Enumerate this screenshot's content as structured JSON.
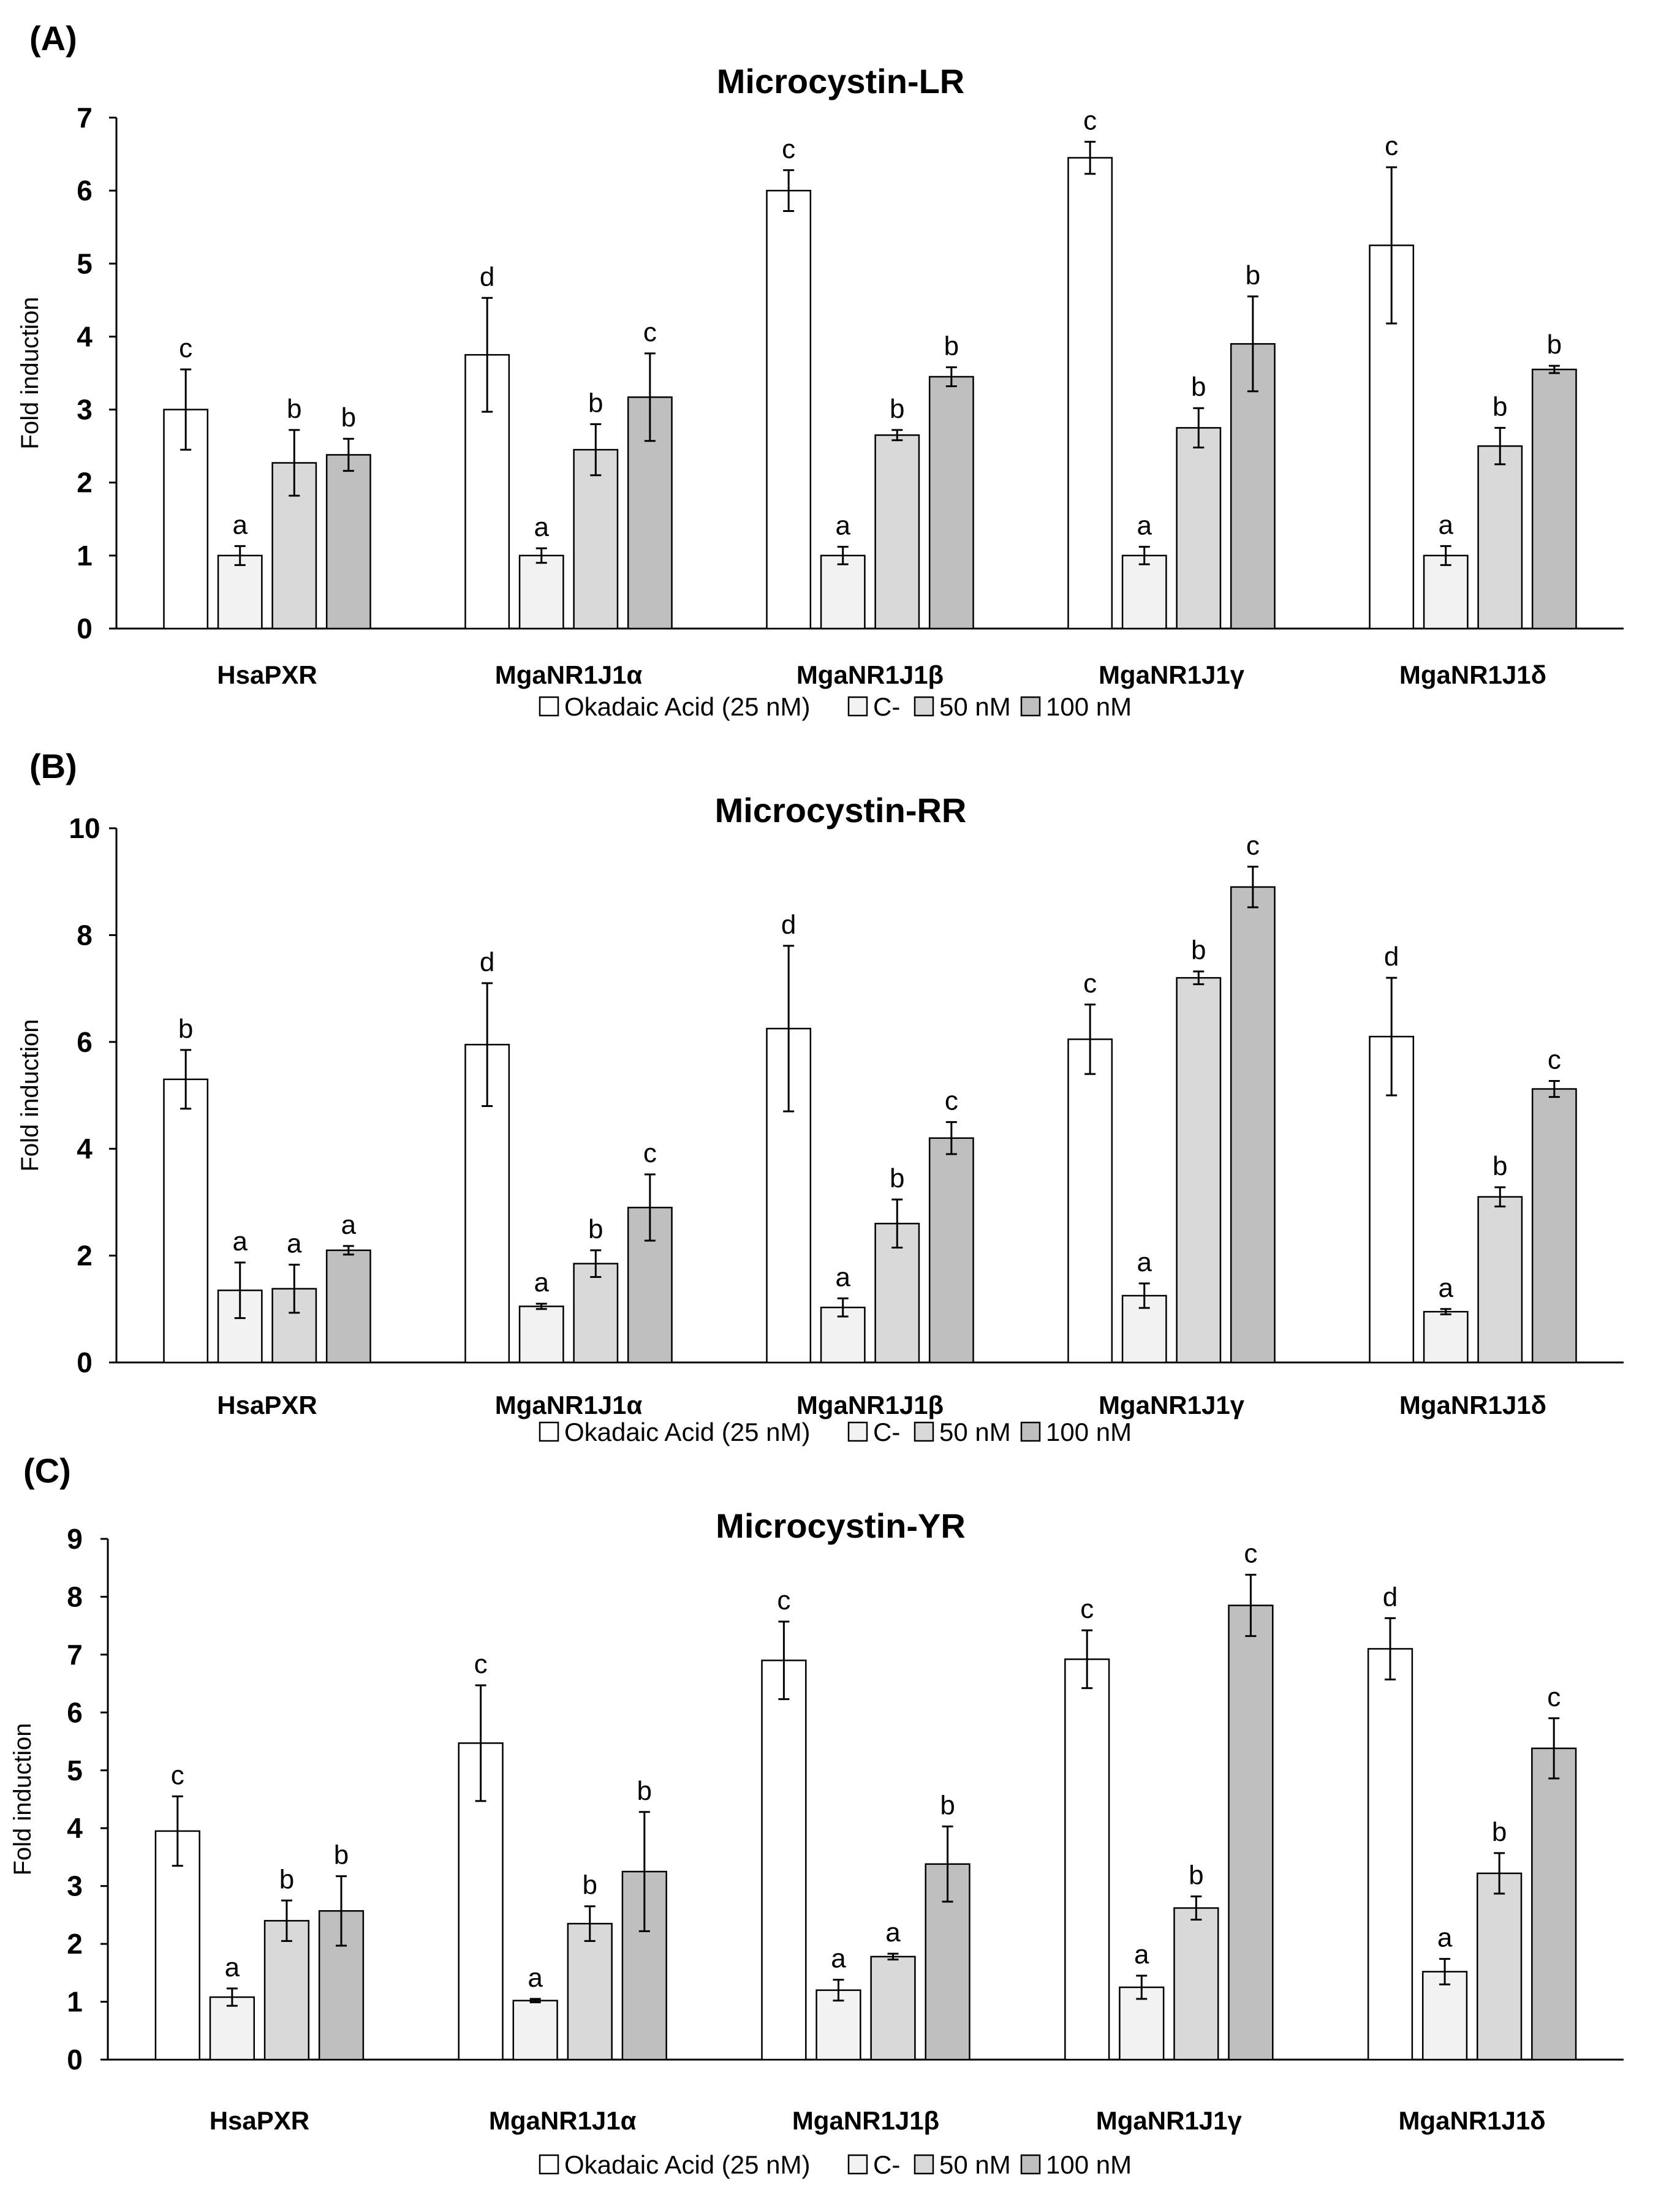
{
  "colors": {
    "okadaic": "#ffffff",
    "control": "#f2f2f2",
    "nm50": "#d9d9d9",
    "nm100": "#bfbfbf",
    "stroke": "#000000"
  },
  "legend": [
    "Okadaic Acid (25 nM)",
    "C-",
    "50 nM",
    "100 nM"
  ],
  "chart_data": [
    {
      "panel": "(A)",
      "type": "bar",
      "title": "Microcystin-LR",
      "ylabel": "Fold induction",
      "ylim": [
        0,
        7
      ],
      "yticks": [
        0,
        1,
        2,
        3,
        4,
        5,
        6,
        7
      ],
      "categories": [
        "HsaPXR",
        "MgaNR1J1α",
        "MgaNR1J1β",
        "MgaNR1J1γ",
        "MgaNR1J1δ"
      ],
      "legend_placement": "bottom",
      "grid": false,
      "series": [
        {
          "name": "Okadaic Acid (25 nM)",
          "values": [
            3.0,
            3.75,
            6.0,
            6.45,
            5.25
          ],
          "errors": [
            0.55,
            0.78,
            0.28,
            0.22,
            1.07
          ],
          "labels": [
            "c",
            "d",
            "c",
            "c",
            "c"
          ]
        },
        {
          "name": "C-",
          "values": [
            1.0,
            1.0,
            1.0,
            1.0,
            1.0
          ],
          "errors": [
            0.13,
            0.1,
            0.12,
            0.12,
            0.13
          ],
          "labels": [
            "a",
            "a",
            "a",
            "a",
            "a"
          ]
        },
        {
          "name": "50 nM",
          "values": [
            2.27,
            2.45,
            2.65,
            2.75,
            2.5
          ],
          "errors": [
            0.45,
            0.35,
            0.07,
            0.27,
            0.25
          ],
          "labels": [
            "b",
            "b",
            "b",
            "b",
            "b"
          ]
        },
        {
          "name": "100 nM",
          "values": [
            2.38,
            3.17,
            3.45,
            3.9,
            3.55
          ],
          "errors": [
            0.22,
            0.6,
            0.13,
            0.65,
            0.05
          ],
          "labels": [
            "b",
            "c",
            "b",
            "b",
            "b"
          ]
        }
      ]
    },
    {
      "panel": "(B)",
      "type": "bar",
      "title": "Microcystin-RR",
      "ylabel": "Fold induction",
      "ylim": [
        0,
        10
      ],
      "yticks": [
        0,
        2,
        4,
        6,
        8,
        10
      ],
      "categories": [
        "HsaPXR",
        "MgaNR1J1α",
        "MgaNR1J1β",
        "MgaNR1J1γ",
        "MgaNR1J1δ"
      ],
      "legend_placement": "bottom",
      "grid": false,
      "series": [
        {
          "name": "Okadaic Acid (25 nM)",
          "values": [
            5.3,
            5.95,
            6.25,
            6.05,
            6.1
          ],
          "errors": [
            0.55,
            1.15,
            1.55,
            0.65,
            1.1
          ],
          "labels": [
            "b",
            "d",
            "d",
            "c",
            "d"
          ]
        },
        {
          "name": "C-",
          "values": [
            1.35,
            1.05,
            1.03,
            1.25,
            0.95
          ],
          "errors": [
            0.52,
            0.05,
            0.17,
            0.23,
            0.05
          ],
          "labels": [
            "a",
            "a",
            "a",
            "a",
            "a"
          ]
        },
        {
          "name": "50 nM",
          "values": [
            1.38,
            1.85,
            2.6,
            7.2,
            3.1
          ],
          "errors": [
            0.45,
            0.25,
            0.45,
            0.12,
            0.18
          ],
          "labels": [
            "a",
            "b",
            "b",
            "b",
            "b"
          ]
        },
        {
          "name": "100 nM",
          "values": [
            2.1,
            2.9,
            4.2,
            8.9,
            5.12
          ],
          "errors": [
            0.08,
            0.62,
            0.3,
            0.38,
            0.15
          ],
          "labels": [
            "a",
            "c",
            "c",
            "c",
            "c"
          ]
        }
      ]
    },
    {
      "panel": "(C)",
      "type": "bar",
      "title": "Microcystin-YR",
      "ylabel": "Fold induction",
      "ylim": [
        0,
        9
      ],
      "yticks": [
        0,
        1,
        2,
        3,
        4,
        5,
        6,
        7,
        8,
        9
      ],
      "categories": [
        "HsaPXR",
        "MgaNR1J1α",
        "MgaNR1J1β",
        "MgaNR1J1γ",
        "MgaNR1J1δ"
      ],
      "legend_placement": "bottom",
      "grid": false,
      "series": [
        {
          "name": "Okadaic Acid (25 nM)",
          "values": [
            3.95,
            5.47,
            6.9,
            6.92,
            7.1
          ],
          "errors": [
            0.6,
            1.0,
            0.67,
            0.5,
            0.53
          ],
          "labels": [
            "c",
            "c",
            "c",
            "c",
            "d"
          ]
        },
        {
          "name": "C-",
          "values": [
            1.08,
            1.02,
            1.2,
            1.25,
            1.52
          ],
          "errors": [
            0.15,
            0.03,
            0.18,
            0.2,
            0.22
          ],
          "labels": [
            "a",
            "a",
            "a",
            "a",
            "a"
          ]
        },
        {
          "name": "50 nM",
          "values": [
            2.4,
            2.35,
            1.78,
            2.62,
            3.22
          ],
          "errors": [
            0.35,
            0.3,
            0.05,
            0.2,
            0.35
          ],
          "labels": [
            "b",
            "b",
            "a",
            "b",
            "b"
          ]
        },
        {
          "name": "100 nM",
          "values": [
            2.57,
            3.25,
            3.38,
            7.85,
            5.38
          ],
          "errors": [
            0.6,
            1.03,
            0.65,
            0.53,
            0.52
          ],
          "labels": [
            "b",
            "b",
            "b",
            "c",
            "c"
          ]
        }
      ]
    }
  ]
}
